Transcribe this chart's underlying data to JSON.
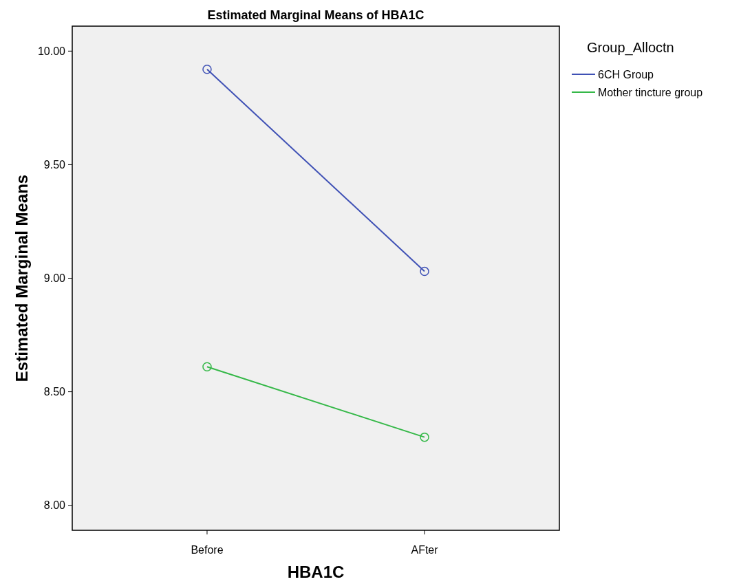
{
  "chart_data": {
    "type": "line",
    "title": "Estimated Marginal Means of HBA1C",
    "xlabel": "HBA1C",
    "ylabel": "Estimated Marginal Means",
    "legend_title": "Group_Alloctn",
    "categories": [
      "Before",
      "AFter"
    ],
    "series": [
      {
        "name": "6CH Group",
        "color": "#3f51b5",
        "values": [
          9.92,
          9.03
        ]
      },
      {
        "name": "Mother tincture group",
        "color": "#35b848",
        "values": [
          8.61,
          8.3
        ]
      }
    ],
    "ylim": [
      7.89,
      10.11
    ],
    "yticks": [
      {
        "value": 8,
        "label": "8.00"
      },
      {
        "value": 8.5,
        "label": "8.50"
      },
      {
        "value": 9,
        "label": "9.00"
      },
      {
        "value": 9.5,
        "label": "9.50"
      },
      {
        "value": 10,
        "label": "10.00"
      }
    ],
    "grid": false,
    "legend": "top right",
    "marker": "circle",
    "line_style": "solid"
  }
}
